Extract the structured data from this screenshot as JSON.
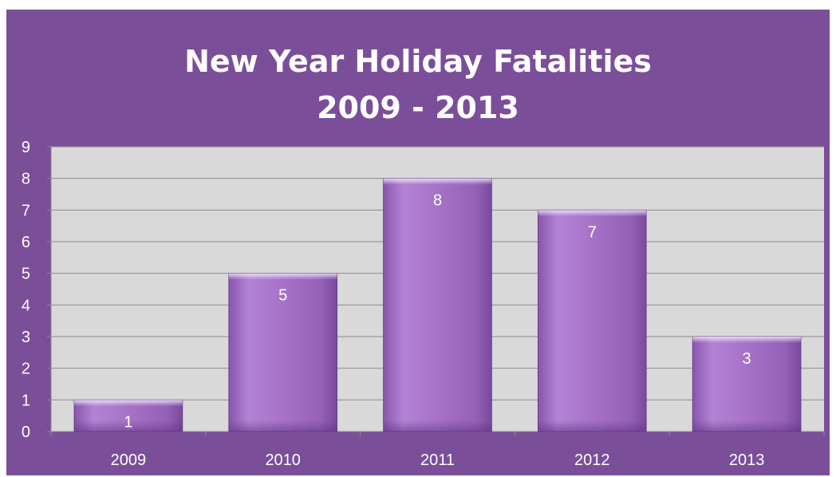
{
  "colors": {
    "background": "#7b4e9a",
    "plot_area": "#d9d9d9",
    "bar": "#a875c9",
    "text": "#ffffff"
  },
  "chart_data": {
    "type": "bar",
    "title": "New Year Holiday Fatalities",
    "subtitle": "2009 - 2013",
    "categories": [
      "2009",
      "2010",
      "2011",
      "2012",
      "2013"
    ],
    "values": [
      1,
      5,
      8,
      7,
      3
    ],
    "data_labels": [
      "1",
      "5",
      "8",
      "7",
      "3"
    ],
    "xlabel": "",
    "ylabel": "",
    "ylim": [
      0,
      9
    ],
    "yticks": [
      "0",
      "1",
      "2",
      "3",
      "4",
      "5",
      "6",
      "7",
      "8",
      "9"
    ],
    "grid": true,
    "legend": "none"
  }
}
